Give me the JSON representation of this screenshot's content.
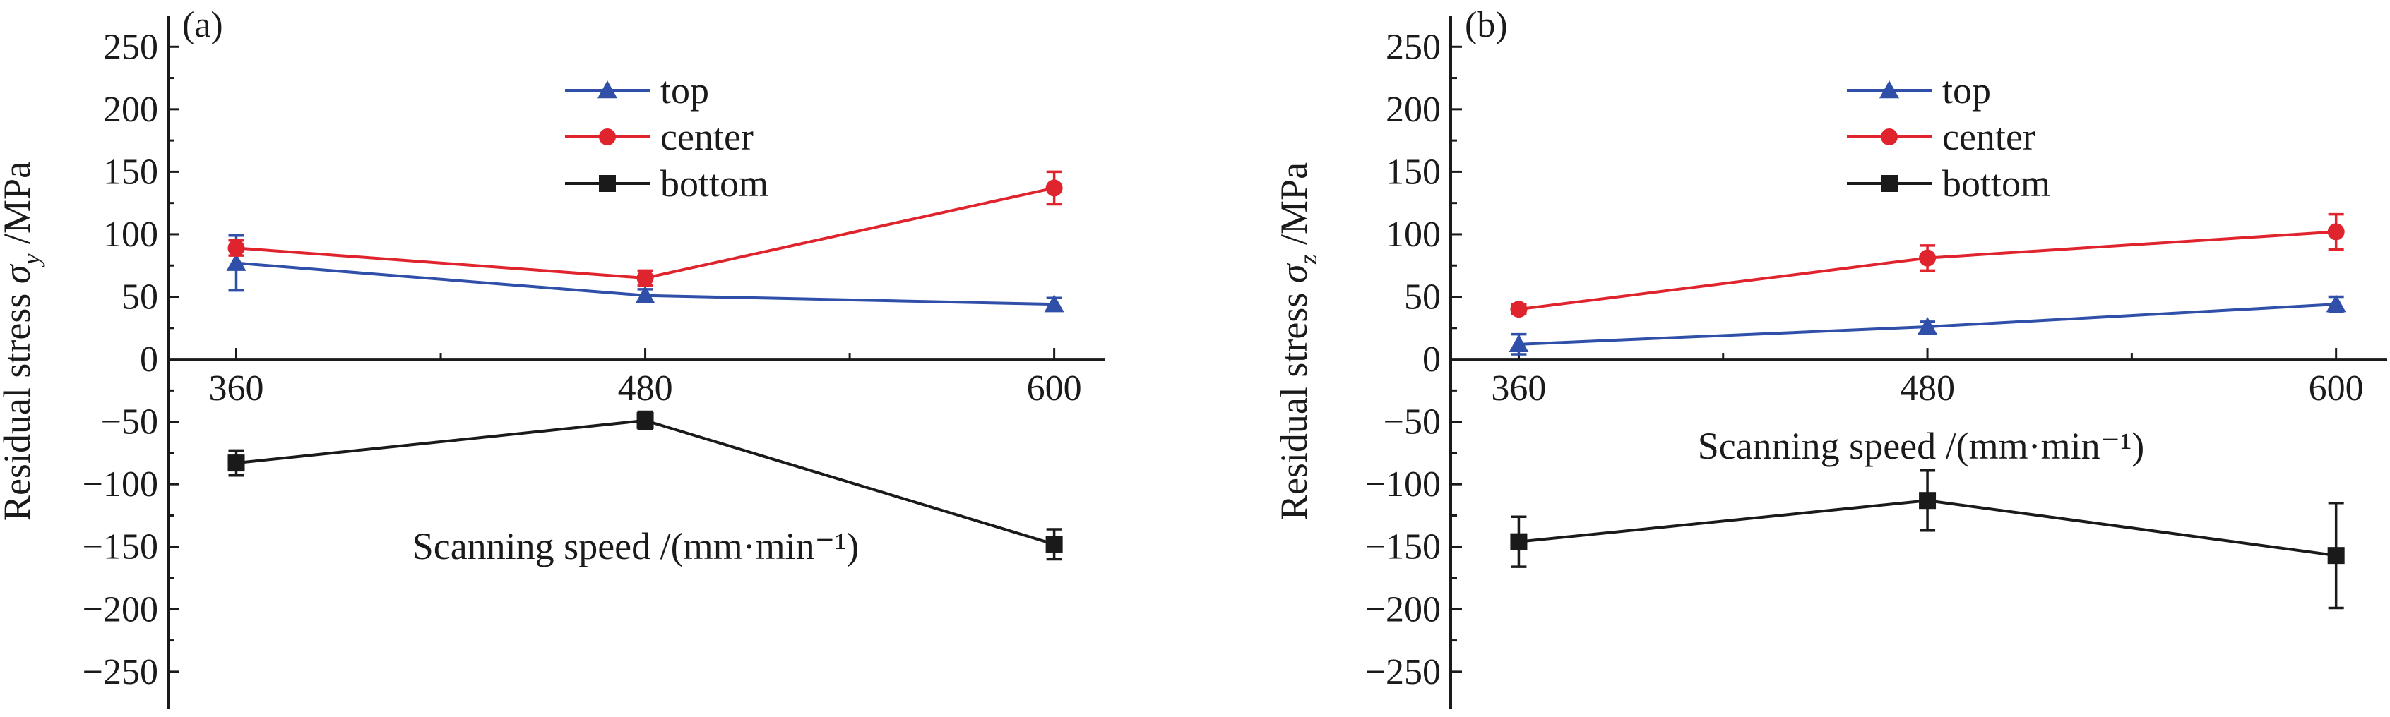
{
  "chart_data": [
    {
      "type": "line",
      "panel_label": "(a)",
      "xlabel": "Scanning speed /(mm·min⁻¹)",
      "ylabel": "Residual stress σy /MPa",
      "ylabel_main": "Residual stress ",
      "ylabel_sym": "σ",
      "ylabel_sub": "y",
      "ylabel_unit": " /MPa",
      "x": [
        360,
        480,
        600
      ],
      "x_tick_labels": [
        "360",
        "480",
        "600"
      ],
      "xlim": [
        340,
        615
      ],
      "ylim": [
        -280,
        275
      ],
      "y_ticks": [
        -250,
        -200,
        -150,
        -100,
        -50,
        0,
        50,
        100,
        150,
        200,
        250
      ],
      "y_tick_labels": [
        "−250",
        "−200",
        "−150",
        "−100",
        "−50",
        "0",
        "50",
        "100",
        "150",
        "200",
        "250"
      ],
      "legend": "top-center",
      "series": [
        {
          "name": "top",
          "color": "#2f4fa8",
          "marker": "triangle",
          "values": [
            77,
            51,
            44
          ],
          "errors": [
            22,
            5,
            5
          ]
        },
        {
          "name": "center",
          "color": "#e0242e",
          "marker": "circle",
          "values": [
            89,
            65,
            137
          ],
          "errors": [
            6,
            6,
            13
          ]
        },
        {
          "name": "bottom",
          "color": "#1a1a1a",
          "marker": "square",
          "values": [
            -83,
            -49,
            -148
          ],
          "errors": [
            10,
            7,
            12
          ]
        }
      ]
    },
    {
      "type": "line",
      "panel_label": "(b)",
      "xlabel": "Scanning speed /(mm·min⁻¹)",
      "ylabel": "Residual stress σz /MPa",
      "ylabel_main": "Residual stress ",
      "ylabel_sym": "σ",
      "ylabel_sub": "z",
      "ylabel_unit": " /MPa",
      "x": [
        360,
        480,
        600
      ],
      "x_tick_labels": [
        "360",
        "480",
        "600"
      ],
      "xlim": [
        340,
        615
      ],
      "ylim": [
        -280,
        275
      ],
      "y_ticks": [
        -250,
        -200,
        -150,
        -100,
        -50,
        0,
        50,
        100,
        150,
        200,
        250
      ],
      "y_tick_labels": [
        "−250",
        "−200",
        "−150",
        "−100",
        "−50",
        "0",
        "50",
        "100",
        "150",
        "200",
        "250"
      ],
      "legend": "top-center",
      "series": [
        {
          "name": "top",
          "color": "#2f4fa8",
          "marker": "triangle",
          "values": [
            12,
            26,
            44
          ],
          "errors": [
            8,
            4,
            6
          ]
        },
        {
          "name": "center",
          "color": "#e0242e",
          "marker": "circle",
          "values": [
            40,
            81,
            102
          ],
          "errors": [
            4,
            10,
            14
          ]
        },
        {
          "name": "bottom",
          "color": "#1a1a1a",
          "marker": "square",
          "values": [
            -146,
            -113,
            -157
          ],
          "errors": [
            20,
            24,
            42
          ]
        }
      ]
    }
  ]
}
